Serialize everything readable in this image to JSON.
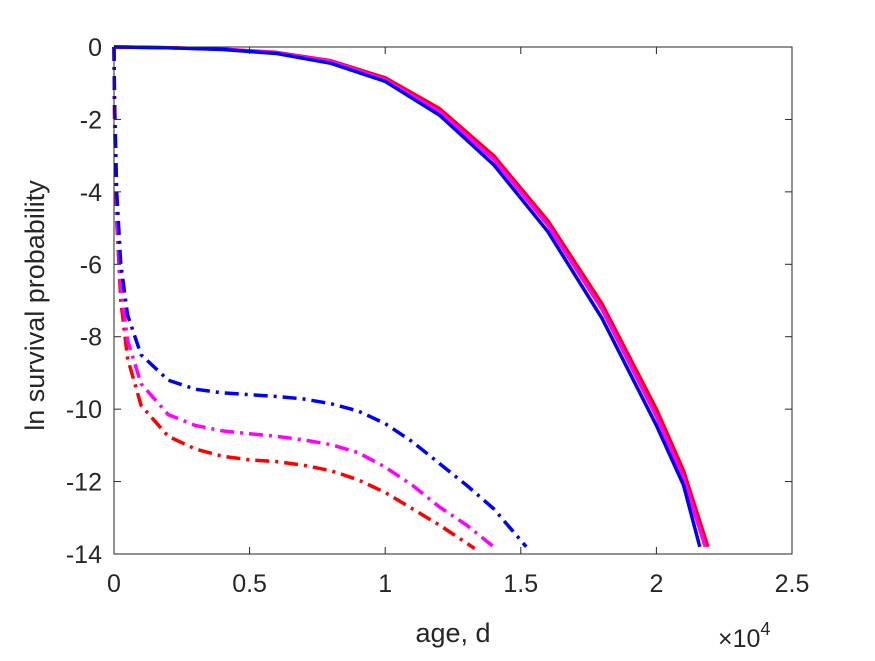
{
  "chart_data": {
    "type": "line",
    "title": "",
    "xlabel": "age, d",
    "ylabel": "ln survival probability",
    "x_multiplier_base": "×10",
    "x_multiplier_exponent": "4",
    "xlim": [
      0,
      25000
    ],
    "ylim": [
      -14,
      0
    ],
    "grid": false,
    "legend": "none",
    "x_ticks": [
      0,
      5000,
      10000,
      15000,
      20000,
      25000
    ],
    "x_tick_labels": [
      "0",
      "0.5",
      "1",
      "1.5",
      "2",
      "2.5"
    ],
    "y_ticks": [
      0,
      -2,
      -4,
      -6,
      -8,
      -10,
      -12,
      -14
    ],
    "y_tick_labels": [
      "0",
      "-2",
      "-4",
      "-6",
      "-8",
      "-10",
      "-12",
      "-14"
    ],
    "series": [
      {
        "color": "#ff0000",
        "style": "solid",
        "points": [
          [
            0,
            0
          ],
          [
            2000,
            -0.02
          ],
          [
            4000,
            -0.06
          ],
          [
            6000,
            -0.15
          ],
          [
            8000,
            -0.38
          ],
          [
            10000,
            -0.85
          ],
          [
            12000,
            -1.7
          ],
          [
            14000,
            -3.0
          ],
          [
            16000,
            -4.8
          ],
          [
            18000,
            -7.1
          ],
          [
            20000,
            -10.0
          ],
          [
            21000,
            -11.7
          ],
          [
            21900,
            -13.8
          ]
        ]
      },
      {
        "color": "#ff00ff",
        "style": "solid",
        "points": [
          [
            0,
            0
          ],
          [
            2000,
            -0.02
          ],
          [
            4000,
            -0.06
          ],
          [
            6000,
            -0.16
          ],
          [
            8000,
            -0.4
          ],
          [
            10000,
            -0.9
          ],
          [
            12000,
            -1.78
          ],
          [
            14000,
            -3.1
          ],
          [
            16000,
            -4.92
          ],
          [
            18000,
            -7.25
          ],
          [
            20000,
            -10.2
          ],
          [
            21000,
            -11.9
          ],
          [
            21800,
            -13.8
          ]
        ]
      },
      {
        "color": "#0000ff",
        "style": "solid",
        "points": [
          [
            0,
            0
          ],
          [
            2000,
            -0.02
          ],
          [
            4000,
            -0.07
          ],
          [
            6000,
            -0.18
          ],
          [
            8000,
            -0.45
          ],
          [
            10000,
            -0.95
          ],
          [
            12000,
            -1.88
          ],
          [
            14000,
            -3.25
          ],
          [
            16000,
            -5.1
          ],
          [
            18000,
            -7.5
          ],
          [
            20000,
            -10.45
          ],
          [
            21000,
            -12.1
          ],
          [
            21600,
            -13.8
          ]
        ]
      },
      {
        "color": "#ff0000",
        "style": "dashdot",
        "points": [
          [
            0,
            0
          ],
          [
            20,
            -2.0
          ],
          [
            100,
            -4.8
          ],
          [
            250,
            -7.0
          ],
          [
            500,
            -8.6
          ],
          [
            1000,
            -9.9
          ],
          [
            2000,
            -10.75
          ],
          [
            3000,
            -11.1
          ],
          [
            4000,
            -11.3
          ],
          [
            5000,
            -11.4
          ],
          [
            6000,
            -11.45
          ],
          [
            7000,
            -11.55
          ],
          [
            8000,
            -11.7
          ],
          [
            9000,
            -11.95
          ],
          [
            10000,
            -12.3
          ],
          [
            11000,
            -12.75
          ],
          [
            12000,
            -13.2
          ],
          [
            13300,
            -13.85
          ]
        ]
      },
      {
        "color": "#ff00ff",
        "style": "dashdot",
        "points": [
          [
            0,
            0
          ],
          [
            20,
            -1.8
          ],
          [
            100,
            -4.5
          ],
          [
            250,
            -6.6
          ],
          [
            500,
            -8.1
          ],
          [
            1000,
            -9.3
          ],
          [
            2000,
            -10.15
          ],
          [
            3000,
            -10.45
          ],
          [
            4000,
            -10.6
          ],
          [
            5000,
            -10.68
          ],
          [
            6000,
            -10.75
          ],
          [
            7000,
            -10.85
          ],
          [
            8000,
            -10.98
          ],
          [
            9000,
            -11.2
          ],
          [
            10000,
            -11.6
          ],
          [
            11000,
            -12.1
          ],
          [
            12000,
            -12.7
          ],
          [
            13000,
            -13.2
          ],
          [
            14000,
            -13.8
          ]
        ]
      },
      {
        "color": "#0000ff",
        "style": "dashdot",
        "points": [
          [
            0,
            0
          ],
          [
            20,
            -1.5
          ],
          [
            100,
            -4.0
          ],
          [
            250,
            -6.0
          ],
          [
            500,
            -7.4
          ],
          [
            1000,
            -8.5
          ],
          [
            2000,
            -9.2
          ],
          [
            3000,
            -9.45
          ],
          [
            4000,
            -9.55
          ],
          [
            5000,
            -9.6
          ],
          [
            6000,
            -9.65
          ],
          [
            7000,
            -9.72
          ],
          [
            8000,
            -9.85
          ],
          [
            9000,
            -10.05
          ],
          [
            10000,
            -10.4
          ],
          [
            11000,
            -10.9
          ],
          [
            12000,
            -11.5
          ],
          [
            13000,
            -12.1
          ],
          [
            14000,
            -12.75
          ],
          [
            15200,
            -13.8
          ]
        ]
      }
    ]
  }
}
